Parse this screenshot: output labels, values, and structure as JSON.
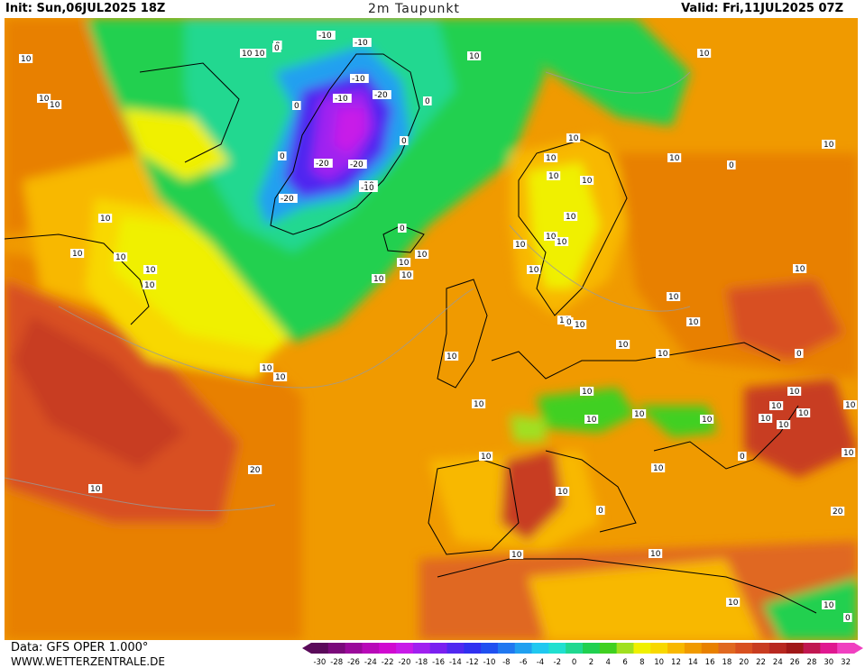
{
  "header": {
    "init": "Init: Sun,06JUL2025 18Z",
    "title": "2m Taupunkt",
    "valid": "Valid: Fri,11JUL2025 07Z"
  },
  "footer": {
    "source": "Data: GFS OPER 1.000°",
    "website": "WWW.WETTERZENTRALE.DE"
  },
  "legend": {
    "ticks": [
      "-30",
      "-28",
      "-26",
      "-24",
      "-22",
      "-20",
      "-18",
      "-16",
      "-14",
      "-12",
      "-10",
      "-8",
      "-6",
      "-4",
      "-2",
      "0",
      "2",
      "4",
      "6",
      "8",
      "10",
      "12",
      "14",
      "16",
      "18",
      "20",
      "22",
      "24",
      "26",
      "28",
      "30",
      "32"
    ],
    "colors": [
      "#5a0a5a",
      "#7a0a7a",
      "#9a0a9a",
      "#b80ab8",
      "#d00ad0",
      "#c81ae8",
      "#a020f0",
      "#7a20f0",
      "#5028f0",
      "#3030f0",
      "#2050f0",
      "#2078f0",
      "#20a0f0",
      "#20c8f0",
      "#20e0d0",
      "#20d890",
      "#20d050",
      "#40d020",
      "#a0e020",
      "#f0f000",
      "#f8d800",
      "#f8b800",
      "#f09a00",
      "#e88000",
      "#e06820",
      "#d85020",
      "#c83c20",
      "#b82820",
      "#a01818",
      "#c01850",
      "#e01890",
      "#f040c0"
    ]
  },
  "contour_labels": [
    "10",
    "10",
    "10",
    "-10",
    "-10",
    "10",
    "10",
    "0",
    "0",
    "10",
    "-10",
    "-20",
    "0",
    "-10",
    "0",
    "0",
    "0",
    "-20",
    "-20",
    "-10",
    "-20",
    "-10",
    "10",
    "10",
    "10",
    "10",
    "10",
    "10",
    "10",
    "0",
    "10",
    "10",
    "10",
    "10",
    "10",
    "10",
    "10",
    "10",
    "10",
    "10",
    "10",
    "10",
    "10",
    "10",
    "10",
    "0",
    "10",
    "10",
    "10",
    "10",
    "10",
    "10",
    "10",
    "10",
    "10",
    "10",
    "10",
    "10",
    "10",
    "10",
    "10",
    "10",
    "10",
    "10",
    "10",
    "10",
    "10",
    "10",
    "10",
    "0",
    "10",
    "10",
    "0",
    "10",
    "10",
    "20",
    "20",
    "10",
    "10",
    "0",
    "0",
    "0"
  ]
}
